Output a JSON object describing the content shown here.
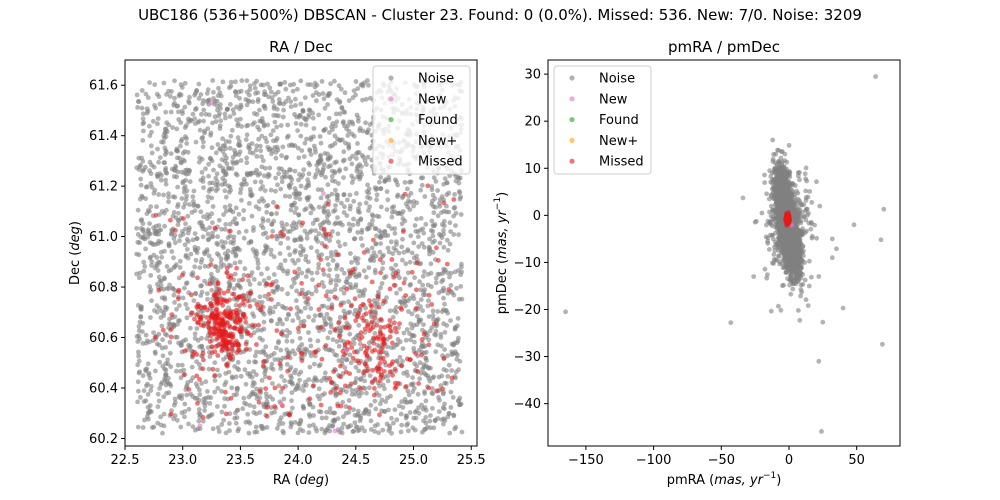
{
  "suptitle": "UBC186 (536+500%) DBSCAN - Cluster 23. Found: 0 (0.0%). Missed: 536. New: 7/0. Noise: 3209",
  "colors": {
    "noise": "#808080",
    "new": "#e377c2",
    "found": "#2ca02c",
    "newplus": "#ff9f0e",
    "missed": "#e41a1c"
  },
  "chart_data": [
    {
      "type": "scatter",
      "title": "RA / Dec",
      "xlabel": "RA",
      "xunit": "deg",
      "ylabel": "Dec",
      "yunit": "deg",
      "xlim": [
        22.5,
        25.55
      ],
      "ylim": [
        60.17,
        61.7
      ],
      "xticks": [
        22.5,
        23.0,
        23.5,
        24.0,
        24.5,
        25.0,
        25.5
      ],
      "xtick_labels": [
        "22.5",
        "23.0",
        "23.5",
        "24.0",
        "24.5",
        "25.0",
        "25.5"
      ],
      "yticks": [
        60.2,
        60.4,
        60.6,
        60.8,
        61.0,
        61.2,
        61.4,
        61.6
      ],
      "ytick_labels": [
        "60.2",
        "60.4",
        "60.6",
        "60.8",
        "61.0",
        "61.2",
        "61.4",
        "61.6"
      ],
      "legend_position": "top-right",
      "legend": [
        "Noise",
        "New",
        "Found",
        "New+",
        "Missed"
      ],
      "noise_region": {
        "x": [
          22.6,
          25.42
        ],
        "y": [
          60.22,
          61.62
        ],
        "count": 3209
      },
      "missed_distribution": {
        "count": 536,
        "concentrations": [
          {
            "x": 23.35,
            "y": 60.65
          },
          {
            "x": 24.65,
            "y": 60.6
          }
        ]
      },
      "series": [
        {
          "name": "New",
          "points": [
            [
              23.25,
              61.53
            ],
            [
              24.22,
              61.17
            ],
            [
              24.75,
              61.53
            ],
            [
              23.15,
              60.25
            ],
            [
              23.85,
              60.34
            ],
            [
              24.32,
              60.23
            ],
            [
              24.42,
              60.55
            ]
          ]
        },
        {
          "name": "Found",
          "points": []
        },
        {
          "name": "New+",
          "points": []
        }
      ]
    },
    {
      "type": "scatter",
      "title": "pmRA / pmDec",
      "xlabel": "pmRA",
      "xunit": "mas, yr",
      "ylabel": "pmDec",
      "yunit": "mas, yr",
      "unit_exponent": "−1",
      "xlim": [
        -178,
        82
      ],
      "ylim": [
        -49,
        33
      ],
      "xticks": [
        -150,
        -100,
        -50,
        0,
        50
      ],
      "xtick_labels": [
        "−150",
        "−100",
        "−50",
        "0",
        "50"
      ],
      "yticks": [
        -40,
        -30,
        -20,
        -10,
        0,
        10,
        20,
        30
      ],
      "ytick_labels": [
        "−40",
        "−30",
        "−20",
        "−10",
        "0",
        "10",
        "20",
        "30"
      ],
      "legend_position": "top-left",
      "legend": [
        "Noise",
        "New",
        "Found",
        "New+",
        "Missed"
      ],
      "noise_core": {
        "center": [
          -1,
          -2
        ],
        "spread": [
          4,
          5
        ]
      },
      "missed_core": {
        "center": [
          -1,
          -0.8
        ],
        "spread": [
          0.5,
          0.4
        ]
      },
      "series": [
        {
          "name": "Noise outliers",
          "points": [
            [
              -165,
              -20.5
            ],
            [
              -43,
              -22.8
            ],
            [
              64,
              29.5
            ],
            [
              70,
              1.3
            ],
            [
              68,
              -5.2
            ],
            [
              69,
              -27.4
            ],
            [
              22,
              -31
            ],
            [
              24,
              -45.9
            ],
            [
              40,
              -19.7
            ],
            [
              25,
              -22.7
            ],
            [
              8,
              -22.3
            ],
            [
              -12,
              16
            ],
            [
              -3,
              13
            ],
            [
              -34,
              3.7
            ],
            [
              -20,
              0.5
            ],
            [
              48,
              -2
            ],
            [
              32,
              -5
            ],
            [
              35,
              -7.1
            ],
            [
              32,
              -9
            ],
            [
              22,
              -13
            ],
            [
              15,
              -15
            ]
          ]
        },
        {
          "name": "New",
          "points": [
            [
              1,
              -1.8
            ],
            [
              2,
              -2.1
            ],
            [
              0.5,
              -1.5
            ]
          ]
        },
        {
          "name": "Found",
          "points": []
        },
        {
          "name": "New+",
          "points": []
        }
      ]
    }
  ]
}
